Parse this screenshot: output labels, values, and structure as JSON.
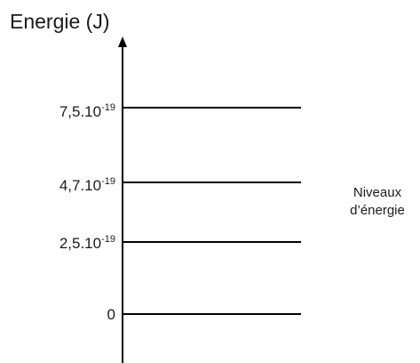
{
  "axis": {
    "title": "Energie (J)"
  },
  "levels": [
    {
      "mantissa": "7,5.10",
      "exponent": "-19",
      "value_J": 7.5e-19
    },
    {
      "mantissa": "4,7.10",
      "exponent": "-19",
      "value_J": 4.7e-19
    },
    {
      "mantissa": "2,5.10",
      "exponent": "-19",
      "value_J": 2.5e-19
    },
    {
      "mantissa": "0",
      "exponent": "",
      "value_J": 0
    }
  ],
  "caption": {
    "line1": "Niveaux",
    "line2": "d’énergie"
  },
  "colors": {
    "lines": "#000000",
    "text": "#1a1a1a",
    "background": "#ffffff"
  }
}
